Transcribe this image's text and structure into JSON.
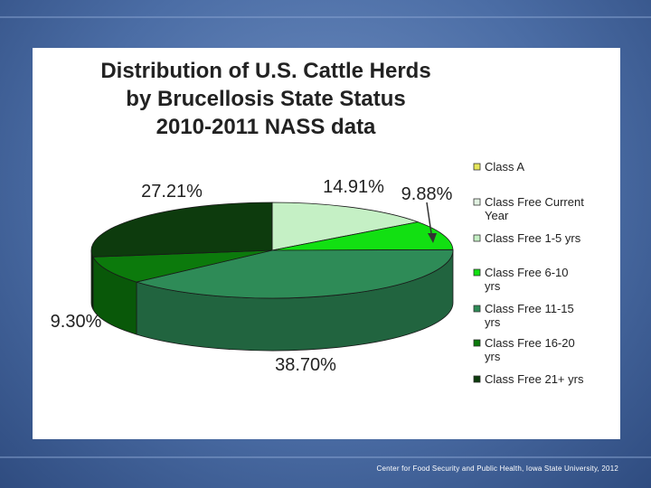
{
  "chart_data": {
    "type": "pie",
    "title": "Distribution of U.S. Cattle Herds\nby Brucellosis State Status\n2010-2011 NASS data",
    "legend_position": "right",
    "slices": [
      {
        "label": "Class A",
        "value": 0.0,
        "display": "",
        "color": "#e6e65a"
      },
      {
        "label": "Class Free Current Year",
        "value": 0.0,
        "display": "",
        "color": "#e2f2e2"
      },
      {
        "label": "Class Free 1-5 yrs",
        "value": 14.91,
        "display": "14.91%",
        "color": "#c5f0c5"
      },
      {
        "label": "Class Free 6-10 yrs",
        "value": 9.88,
        "display": "9.88%",
        "color": "#12e012"
      },
      {
        "label": "Class Free 11-15 yrs",
        "value": 38.7,
        "display": "38.70%",
        "color": "#2e8b57"
      },
      {
        "label": "Class Free 16-20 yrs",
        "value": 9.3,
        "display": "9.30%",
        "color": "#0c7a0c"
      },
      {
        "label": "Class Free 21+ yrs",
        "value": 27.21,
        "display": "27.21%",
        "color": "#0d3b0d"
      }
    ]
  },
  "footer": "Center for Food Security and Public Health, Iowa State University, 2012"
}
